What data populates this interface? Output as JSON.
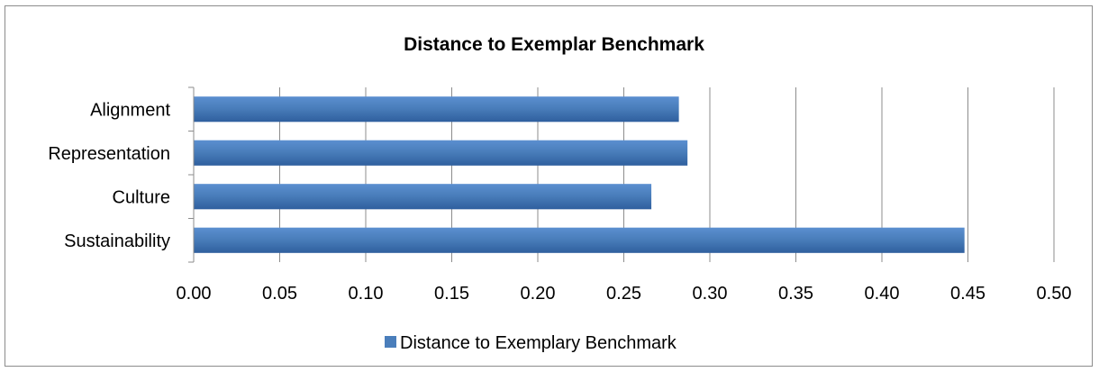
{
  "chart_data": {
    "type": "bar",
    "orientation": "horizontal",
    "title": "Distance to Exemplar Benchmark",
    "xlabel": "",
    "ylabel": "",
    "categories": [
      "Alignment",
      "Representation",
      "Culture",
      "Sustainability"
    ],
    "series": [
      {
        "name": "Distance to Exemplary Benchmark",
        "values": [
          0.282,
          0.287,
          0.266,
          0.448
        ],
        "color": "#4a7ebb"
      }
    ],
    "xlim": [
      0,
      0.5
    ],
    "xticks": [
      "0.00",
      "0.05",
      "0.10",
      "0.15",
      "0.20",
      "0.25",
      "0.30",
      "0.35",
      "0.40",
      "0.45",
      "0.50"
    ],
    "grid": "vertical",
    "legend_position": "bottom"
  }
}
